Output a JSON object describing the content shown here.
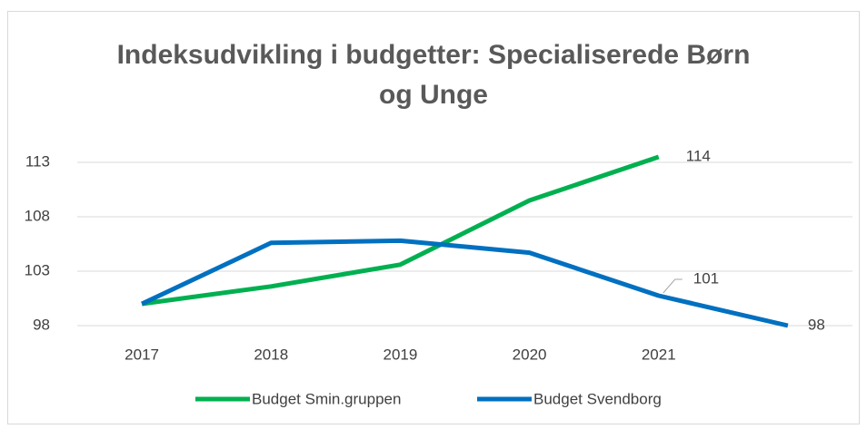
{
  "chart_data": {
    "type": "line",
    "title": "Indeksudvikling i budgetter: Specialiserede Børn og Unge",
    "categories": [
      "2017",
      "2018",
      "2019",
      "2020",
      "2021",
      null
    ],
    "series": [
      {
        "name": "Budget Smin.gruppen",
        "color": "#00b050",
        "values": [
          100,
          101.6,
          103.6,
          109.5,
          113.5,
          null
        ],
        "value_labels": [
          null,
          null,
          null,
          null,
          "114",
          null
        ]
      },
      {
        "name": "Budget Svendborg",
        "color": "#0070c0",
        "values": [
          100,
          105.6,
          105.8,
          104.7,
          100.75,
          98
        ],
        "value_labels": [
          null,
          null,
          null,
          null,
          "101",
          "98"
        ]
      }
    ],
    "ylim": [
      98,
      115
    ],
    "yticks": [
      98,
      103,
      108,
      113
    ],
    "grid": true,
    "legend": "bottom"
  }
}
